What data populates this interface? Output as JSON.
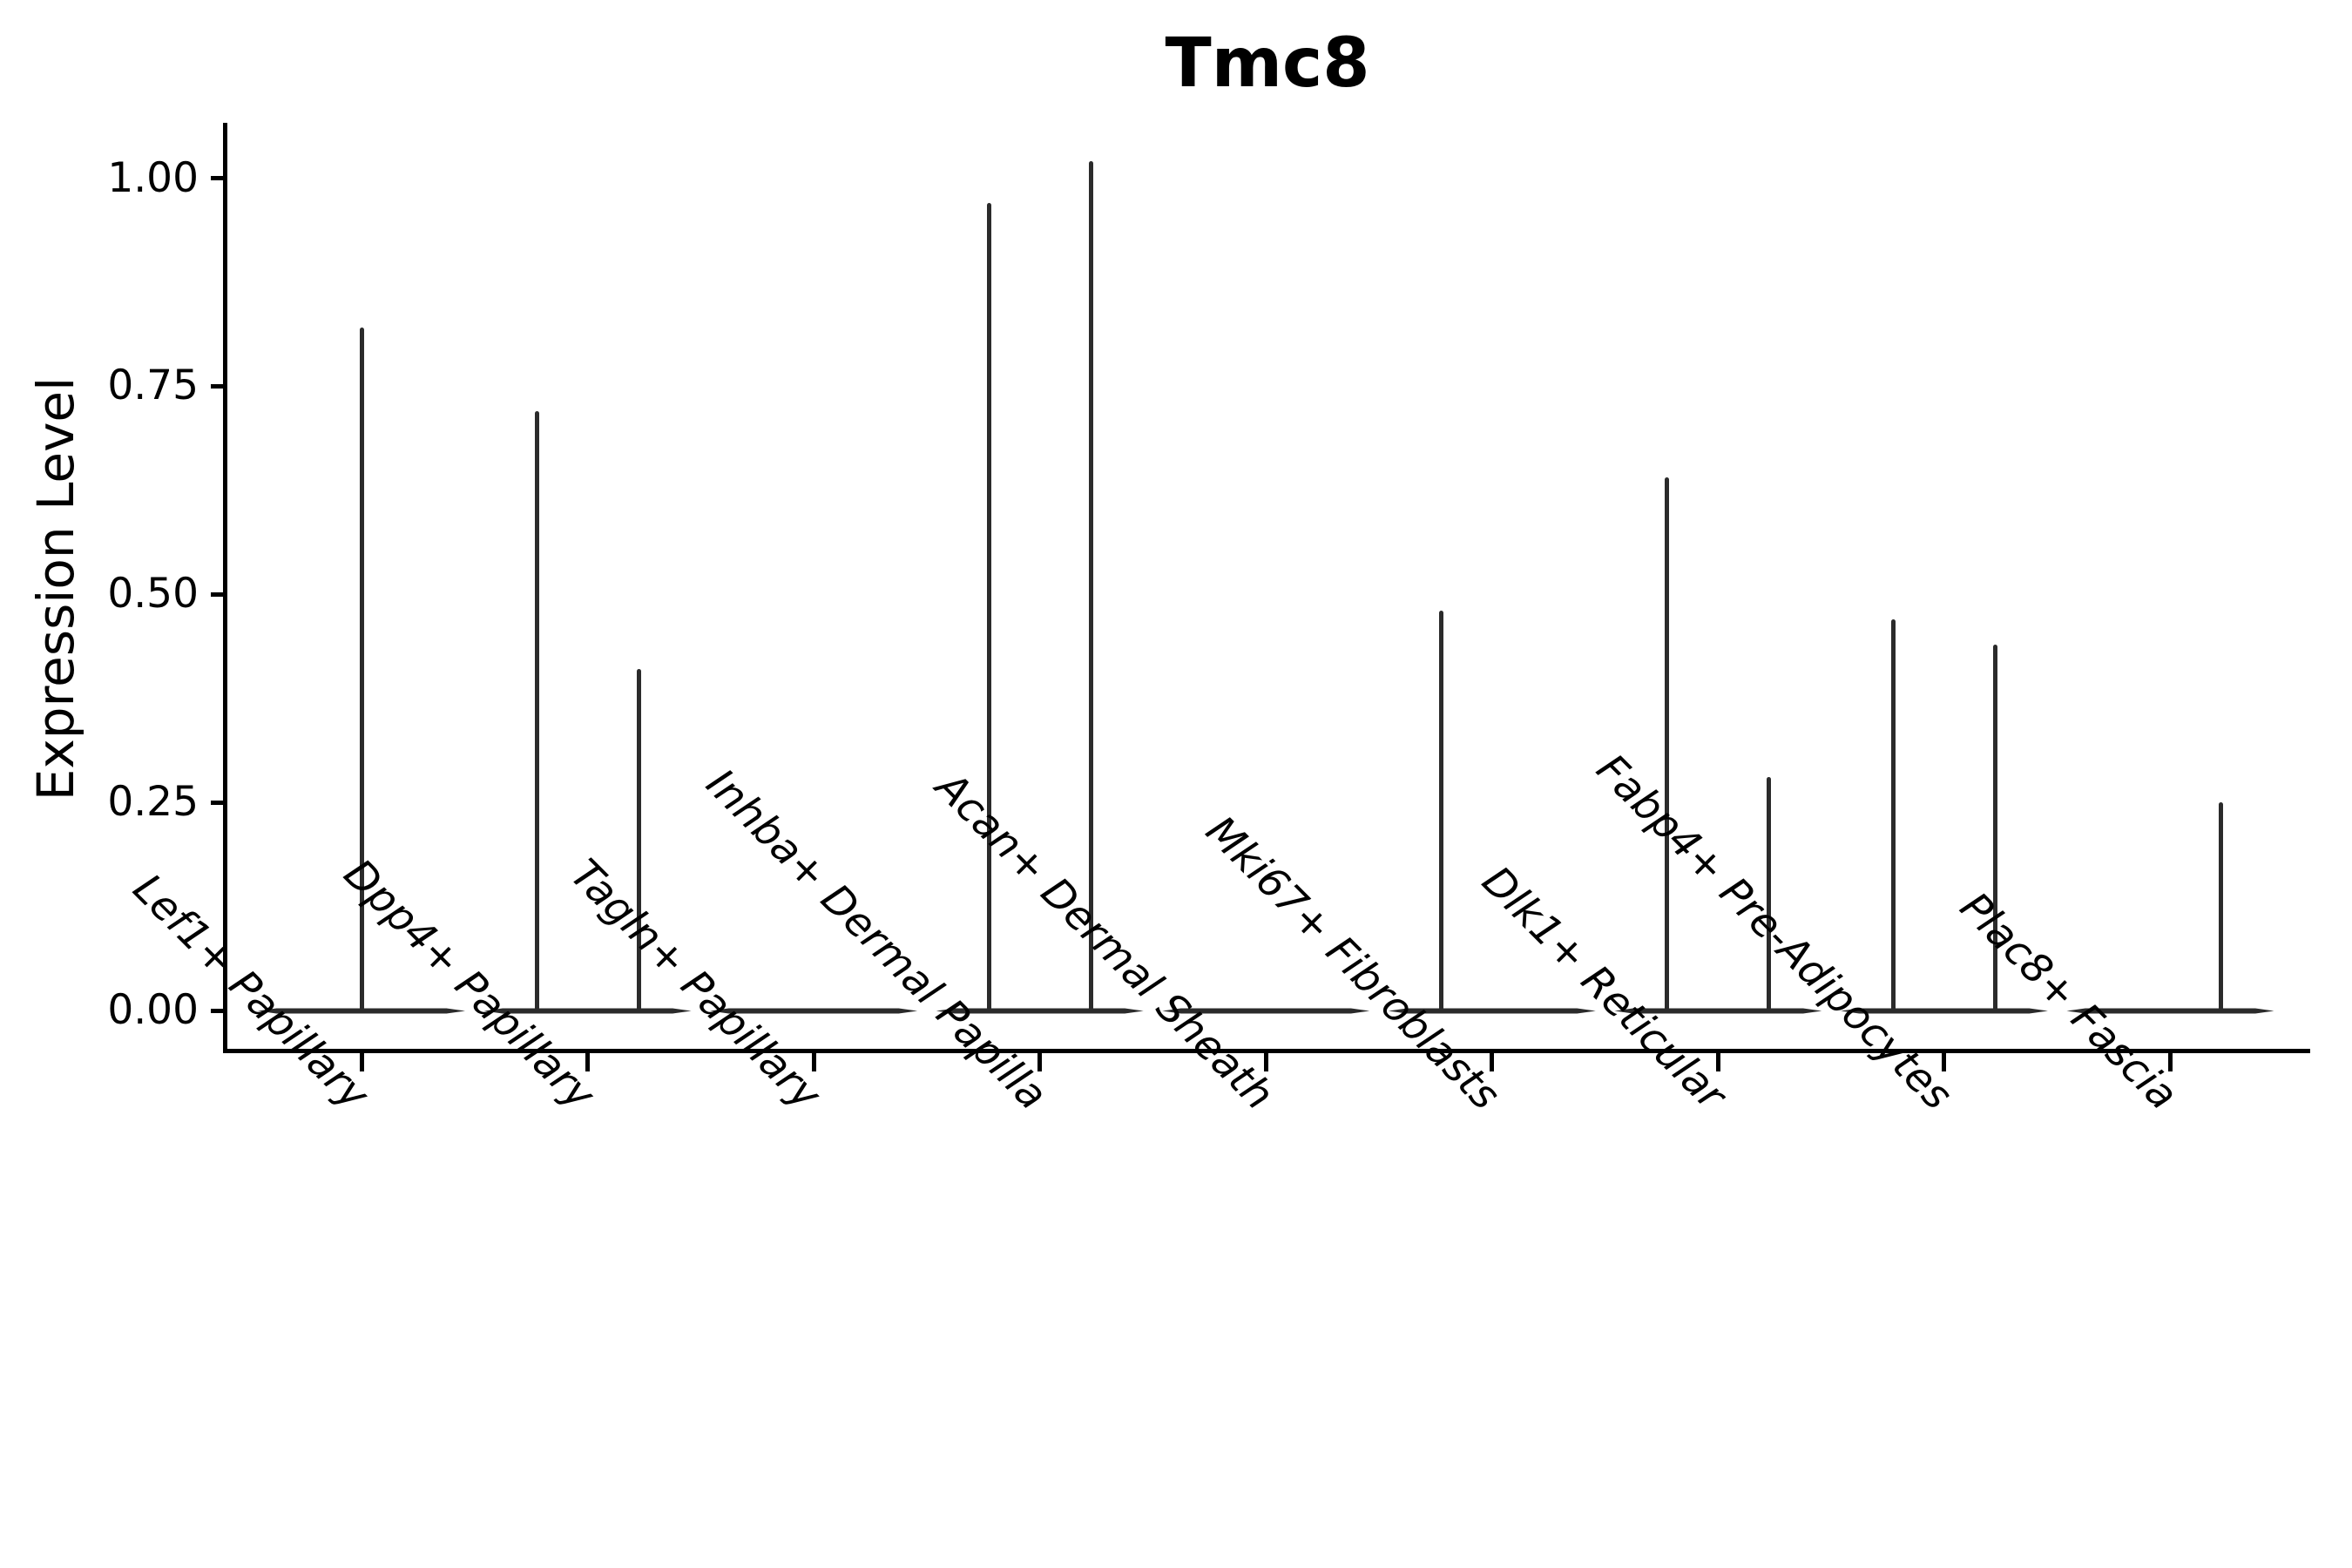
{
  "title": "Tmc8",
  "axes": {
    "y_label": "Expression Level",
    "y_tick_labels": [
      "1.00",
      "0.75",
      "0.50",
      "0.25",
      "0.00"
    ]
  },
  "chart_data": {
    "type": "violin",
    "title": "Tmc8",
    "xlabel": "",
    "ylabel": "Expression Level",
    "ylim": [
      0,
      1.07
    ],
    "y_ticks": [
      1.0,
      0.75,
      0.5,
      0.25,
      0.0
    ],
    "grid": false,
    "legend": false,
    "line_color": "#2b2b2b",
    "axis_color": "#000000",
    "categories": [
      "Lef1+ Papillary",
      "Dpp4+ Papillary",
      "Tagln+ Papillary",
      "Inhba+ Dermal Papilla",
      "Acan+ Dermal Sheath",
      "Mki67+ Fibroblasts",
      "Dlk1+ Reticular",
      "Fabp4+ Pre-Adipocytes",
      "Plac8+ Fascia"
    ],
    "description": "Violins are collapsed to flat baselines at expression 0 with thin vertical density spikes reaching the maximum expression values; spikes sit at the violin center or at left/right quarter positions of the category slot.",
    "series": [
      {
        "category": "Lef1+ Papillary",
        "baseline": 0,
        "spikes": [
          {
            "position": "center",
            "value": 0.82
          }
        ]
      },
      {
        "category": "Dpp4+ Papillary",
        "baseline": 0,
        "spikes": [
          {
            "position": "left",
            "value": 0.72
          },
          {
            "position": "right",
            "value": 0.41
          }
        ]
      },
      {
        "category": "Tagln+ Papillary",
        "baseline": 0,
        "spikes": []
      },
      {
        "category": "Inhba+ Dermal Papilla",
        "baseline": 0,
        "spikes": [
          {
            "position": "left",
            "value": 0.97
          },
          {
            "position": "right",
            "value": 1.02
          }
        ]
      },
      {
        "category": "Acan+ Dermal Sheath",
        "baseline": 0,
        "spikes": []
      },
      {
        "category": "Mki67+ Fibroblasts",
        "baseline": 0,
        "spikes": [
          {
            "position": "left",
            "value": 0.48
          }
        ]
      },
      {
        "category": "Dlk1+ Reticular",
        "baseline": 0,
        "spikes": [
          {
            "position": "left",
            "value": 0.64
          },
          {
            "position": "right",
            "value": 0.28
          }
        ]
      },
      {
        "category": "Fabp4+ Pre-Adipocytes",
        "baseline": 0,
        "spikes": [
          {
            "position": "left",
            "value": 0.47
          },
          {
            "position": "right",
            "value": 0.44
          }
        ]
      },
      {
        "category": "Plac8+ Fascia",
        "baseline": 0,
        "spikes": [
          {
            "position": "right",
            "value": 0.25
          }
        ]
      }
    ]
  }
}
